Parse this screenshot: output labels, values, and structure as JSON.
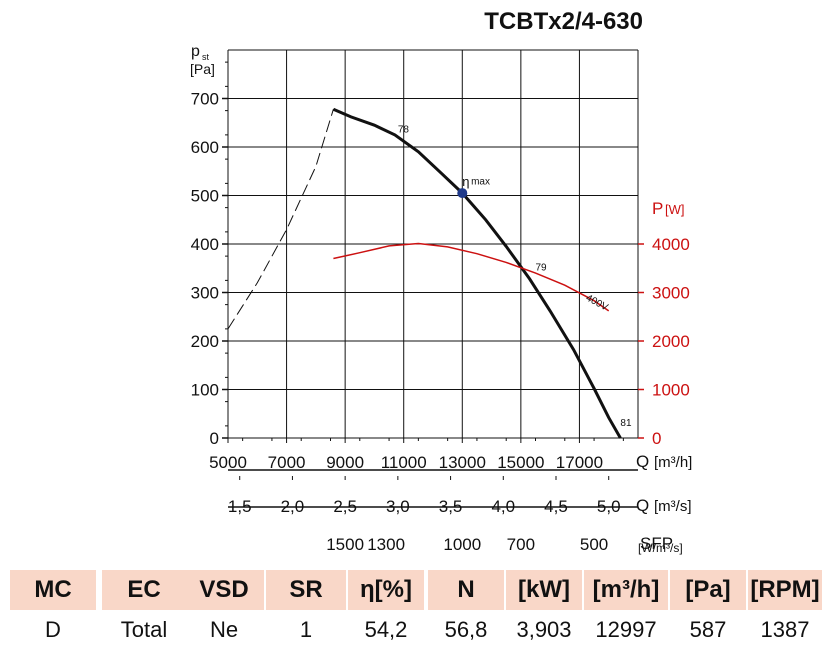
{
  "chart_data": {
    "type": "line",
    "title": "TCBTx2/4-630",
    "ylabel": "p",
    "ylabel_sub": "st",
    "yunit": "[Pa]",
    "ylim": [
      0,
      800
    ],
    "yticks": [
      "0",
      "100",
      "200",
      "300",
      "400",
      "500",
      "600",
      "700"
    ],
    "y2label": "P",
    "y2unit": "[W]",
    "y2lim": [
      0,
      8000
    ],
    "y2ticks": [
      "0",
      "1000",
      "2000",
      "3000",
      "4000"
    ],
    "xlim": [
      5000,
      19000
    ],
    "x_axes": [
      {
        "name": "Q",
        "unit": "[m³/h]",
        "ticks": [
          [
            "5000",
            5000
          ],
          [
            "7000",
            7000
          ],
          [
            "9000",
            9000
          ],
          [
            "11000",
            11000
          ],
          [
            "13000",
            13000
          ],
          [
            "15000",
            15000
          ],
          [
            "17000",
            17000
          ]
        ]
      },
      {
        "name": "Q",
        "unit": "[m³/s]",
        "ticks": [
          [
            "1,5",
            5400
          ],
          [
            "2,0",
            7200
          ],
          [
            "2,5",
            9000
          ],
          [
            "3,0",
            10800
          ],
          [
            "3,5",
            12600
          ],
          [
            "4,0",
            14400
          ],
          [
            "4,5",
            16200
          ],
          [
            "5,0",
            18000
          ]
        ]
      },
      {
        "name": "SFP",
        "unit": "[W/m³/s]",
        "ticks": [
          [
            "1500",
            9000
          ],
          [
            "1300",
            10400
          ],
          [
            "1000",
            13000
          ],
          [
            "700",
            15000
          ],
          [
            "500",
            17500
          ]
        ]
      }
    ],
    "series": [
      {
        "name": "pressure",
        "color": "#111111",
        "x": [
          8600,
          9200,
          10000,
          10700,
          11500,
          12300,
          13000,
          13800,
          14500,
          15300,
          16000,
          16800,
          17500,
          18000,
          18400
        ],
        "y": [
          678,
          662,
          645,
          625,
          590,
          545,
          505,
          450,
          395,
          328,
          262,
          182,
          102,
          42,
          0
        ]
      },
      {
        "name": "pressure-extension",
        "color": "#111111",
        "dashed": true,
        "x": [
          5000,
          6000,
          7000,
          8000,
          8600
        ],
        "y": [
          225,
          320,
          430,
          560,
          678
        ]
      },
      {
        "name": "power 400V",
        "color": "#cc1111",
        "x": [
          8600,
          9500,
          10500,
          11500,
          12500,
          13500,
          14500,
          15500,
          16500,
          17500,
          18000
        ],
        "y": [
          3700,
          3820,
          3960,
          4010,
          3940,
          3800,
          3620,
          3400,
          3150,
          2830,
          2620
        ]
      }
    ],
    "annotations": [
      {
        "text": "78",
        "x": 10800,
        "y": 630
      },
      {
        "text": "η",
        "x": 13000,
        "y": 520
      },
      {
        "text": "max",
        "x": 13300,
        "y": 523
      },
      {
        "text": "79",
        "x": 15500,
        "y": 345
      },
      {
        "text": "400V",
        "x": 17200,
        "y": 285
      },
      {
        "text": "81",
        "x": 18400,
        "y": 25
      }
    ],
    "points": [
      {
        "name": "eta-max",
        "x": 13000,
        "y": 505,
        "color": "#1f3a8a"
      }
    ]
  },
  "table": {
    "headers": [
      "MC",
      "EC",
      "VSD",
      "SR",
      "η[%]",
      "N",
      "[kW]",
      "[m³/h]",
      "[Pa]",
      "[RPM]"
    ],
    "values": [
      "D",
      "Total",
      "Ne",
      "1",
      "54,2",
      "56,8",
      "3,903",
      "12997",
      "587",
      "1387"
    ]
  }
}
